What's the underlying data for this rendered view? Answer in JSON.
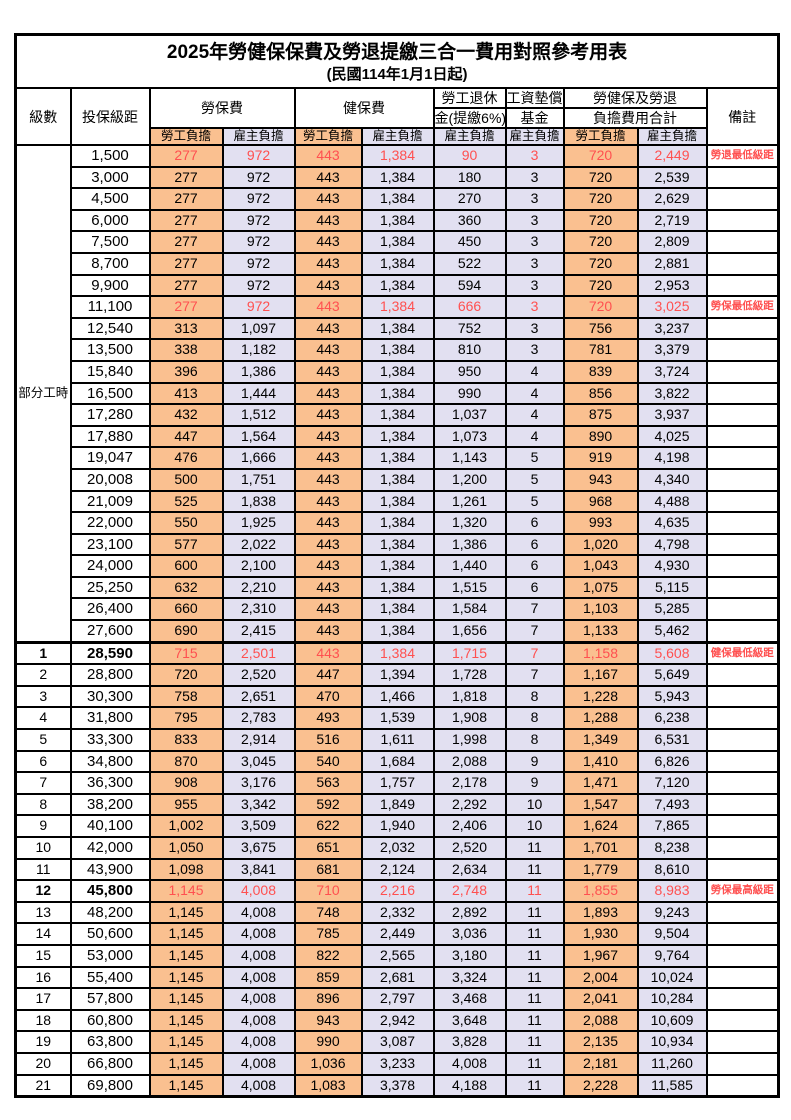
{
  "title": "2025年勞健保保費及勞退提繳三合一費用對照參考用表",
  "subtitle": "(民國114年1月1日起)",
  "part_time_label": "部分工時",
  "header": {
    "level": "級數",
    "bracket": "投保級距",
    "labor_ins": "勞保費",
    "health_ins": "健保費",
    "pension_l1": "勞工退休",
    "pension_l2": "金(提繳6%)",
    "wage_fund_l1": "工資墊償",
    "wage_fund_l2": "基金",
    "total_l1": "勞健保及勞退",
    "total_l2": "負擔費用合計",
    "remark": "備註",
    "employee": "勞工負擔",
    "employer": "雇主負擔"
  },
  "colors": {
    "employee_bg": "#FAC090",
    "employer_bg": "#E2E0F1",
    "highlight_text": "#FF5050",
    "border": "#000000"
  },
  "chart_data": {
    "type": "table",
    "columns": [
      "級數",
      "投保級距",
      "勞保費-勞工負擔",
      "勞保費-雇主負擔",
      "健保費-勞工負擔",
      "健保費-雇主負擔",
      "勞工退休金(提繳6%)-雇主負擔",
      "工資墊償基金-雇主負擔",
      "合計-勞工負擔",
      "合計-雇主負擔",
      "備註"
    ],
    "rows": [
      {
        "level": "",
        "bracket": "1,500",
        "values": [
          "277",
          "972",
          "443",
          "1,384",
          "90",
          "3",
          "720",
          "2,449"
        ],
        "remark": "勞退最低級距",
        "highlight": true,
        "bold": false
      },
      {
        "level": "",
        "bracket": "3,000",
        "values": [
          "277",
          "972",
          "443",
          "1,384",
          "180",
          "3",
          "720",
          "2,539"
        ],
        "remark": "",
        "highlight": false,
        "bold": false
      },
      {
        "level": "",
        "bracket": "4,500",
        "values": [
          "277",
          "972",
          "443",
          "1,384",
          "270",
          "3",
          "720",
          "2,629"
        ],
        "remark": "",
        "highlight": false,
        "bold": false
      },
      {
        "level": "",
        "bracket": "6,000",
        "values": [
          "277",
          "972",
          "443",
          "1,384",
          "360",
          "3",
          "720",
          "2,719"
        ],
        "remark": "",
        "highlight": false,
        "bold": false
      },
      {
        "level": "",
        "bracket": "7,500",
        "values": [
          "277",
          "972",
          "443",
          "1,384",
          "450",
          "3",
          "720",
          "2,809"
        ],
        "remark": "",
        "highlight": false,
        "bold": false
      },
      {
        "level": "",
        "bracket": "8,700",
        "values": [
          "277",
          "972",
          "443",
          "1,384",
          "522",
          "3",
          "720",
          "2,881"
        ],
        "remark": "",
        "highlight": false,
        "bold": false
      },
      {
        "level": "",
        "bracket": "9,900",
        "values": [
          "277",
          "972",
          "443",
          "1,384",
          "594",
          "3",
          "720",
          "2,953"
        ],
        "remark": "",
        "highlight": false,
        "bold": false
      },
      {
        "level": "",
        "bracket": "11,100",
        "values": [
          "277",
          "972",
          "443",
          "1,384",
          "666",
          "3",
          "720",
          "3,025"
        ],
        "remark": "勞保最低級距",
        "highlight": true,
        "bold": false
      },
      {
        "level": "",
        "bracket": "12,540",
        "values": [
          "313",
          "1,097",
          "443",
          "1,384",
          "752",
          "3",
          "756",
          "3,237"
        ],
        "remark": "",
        "highlight": false,
        "bold": false
      },
      {
        "level": "",
        "bracket": "13,500",
        "values": [
          "338",
          "1,182",
          "443",
          "1,384",
          "810",
          "3",
          "781",
          "3,379"
        ],
        "remark": "",
        "highlight": false,
        "bold": false
      },
      {
        "level": "",
        "bracket": "15,840",
        "values": [
          "396",
          "1,386",
          "443",
          "1,384",
          "950",
          "4",
          "839",
          "3,724"
        ],
        "remark": "",
        "highlight": false,
        "bold": false
      },
      {
        "level": "",
        "bracket": "16,500",
        "values": [
          "413",
          "1,444",
          "443",
          "1,384",
          "990",
          "4",
          "856",
          "3,822"
        ],
        "remark": "",
        "highlight": false,
        "bold": false
      },
      {
        "level": "",
        "bracket": "17,280",
        "values": [
          "432",
          "1,512",
          "443",
          "1,384",
          "1,037",
          "4",
          "875",
          "3,937"
        ],
        "remark": "",
        "highlight": false,
        "bold": false
      },
      {
        "level": "",
        "bracket": "17,880",
        "values": [
          "447",
          "1,564",
          "443",
          "1,384",
          "1,073",
          "4",
          "890",
          "4,025"
        ],
        "remark": "",
        "highlight": false,
        "bold": false
      },
      {
        "level": "",
        "bracket": "19,047",
        "values": [
          "476",
          "1,666",
          "443",
          "1,384",
          "1,143",
          "5",
          "919",
          "4,198"
        ],
        "remark": "",
        "highlight": false,
        "bold": false
      },
      {
        "level": "",
        "bracket": "20,008",
        "values": [
          "500",
          "1,751",
          "443",
          "1,384",
          "1,200",
          "5",
          "943",
          "4,340"
        ],
        "remark": "",
        "highlight": false,
        "bold": false
      },
      {
        "level": "",
        "bracket": "21,009",
        "values": [
          "525",
          "1,838",
          "443",
          "1,384",
          "1,261",
          "5",
          "968",
          "4,488"
        ],
        "remark": "",
        "highlight": false,
        "bold": false
      },
      {
        "level": "",
        "bracket": "22,000",
        "values": [
          "550",
          "1,925",
          "443",
          "1,384",
          "1,320",
          "6",
          "993",
          "4,635"
        ],
        "remark": "",
        "highlight": false,
        "bold": false
      },
      {
        "level": "",
        "bracket": "23,100",
        "values": [
          "577",
          "2,022",
          "443",
          "1,384",
          "1,386",
          "6",
          "1,020",
          "4,798"
        ],
        "remark": "",
        "highlight": false,
        "bold": false
      },
      {
        "level": "",
        "bracket": "24,000",
        "values": [
          "600",
          "2,100",
          "443",
          "1,384",
          "1,440",
          "6",
          "1,043",
          "4,930"
        ],
        "remark": "",
        "highlight": false,
        "bold": false
      },
      {
        "level": "",
        "bracket": "25,250",
        "values": [
          "632",
          "2,210",
          "443",
          "1,384",
          "1,515",
          "6",
          "1,075",
          "5,115"
        ],
        "remark": "",
        "highlight": false,
        "bold": false
      },
      {
        "level": "",
        "bracket": "26,400",
        "values": [
          "660",
          "2,310",
          "443",
          "1,384",
          "1,584",
          "7",
          "1,103",
          "5,285"
        ],
        "remark": "",
        "highlight": false,
        "bold": false
      },
      {
        "level": "",
        "bracket": "27,600",
        "values": [
          "690",
          "2,415",
          "443",
          "1,384",
          "1,656",
          "7",
          "1,133",
          "5,462"
        ],
        "remark": "",
        "highlight": false,
        "bold": false
      },
      {
        "level": "1",
        "bracket": "28,590",
        "values": [
          "715",
          "2,501",
          "443",
          "1,384",
          "1,715",
          "7",
          "1,158",
          "5,608"
        ],
        "remark": "健保最低級距",
        "highlight": true,
        "bold": true
      },
      {
        "level": "2",
        "bracket": "28,800",
        "values": [
          "720",
          "2,520",
          "447",
          "1,394",
          "1,728",
          "7",
          "1,167",
          "5,649"
        ],
        "remark": "",
        "highlight": false,
        "bold": false
      },
      {
        "level": "3",
        "bracket": "30,300",
        "values": [
          "758",
          "2,651",
          "470",
          "1,466",
          "1,818",
          "8",
          "1,228",
          "5,943"
        ],
        "remark": "",
        "highlight": false,
        "bold": false
      },
      {
        "level": "4",
        "bracket": "31,800",
        "values": [
          "795",
          "2,783",
          "493",
          "1,539",
          "1,908",
          "8",
          "1,288",
          "6,238"
        ],
        "remark": "",
        "highlight": false,
        "bold": false
      },
      {
        "level": "5",
        "bracket": "33,300",
        "values": [
          "833",
          "2,914",
          "516",
          "1,611",
          "1,998",
          "8",
          "1,349",
          "6,531"
        ],
        "remark": "",
        "highlight": false,
        "bold": false
      },
      {
        "level": "6",
        "bracket": "34,800",
        "values": [
          "870",
          "3,045",
          "540",
          "1,684",
          "2,088",
          "9",
          "1,410",
          "6,826"
        ],
        "remark": "",
        "highlight": false,
        "bold": false
      },
      {
        "level": "7",
        "bracket": "36,300",
        "values": [
          "908",
          "3,176",
          "563",
          "1,757",
          "2,178",
          "9",
          "1,471",
          "7,120"
        ],
        "remark": "",
        "highlight": false,
        "bold": false
      },
      {
        "level": "8",
        "bracket": "38,200",
        "values": [
          "955",
          "3,342",
          "592",
          "1,849",
          "2,292",
          "10",
          "1,547",
          "7,493"
        ],
        "remark": "",
        "highlight": false,
        "bold": false
      },
      {
        "level": "9",
        "bracket": "40,100",
        "values": [
          "1,002",
          "3,509",
          "622",
          "1,940",
          "2,406",
          "10",
          "1,624",
          "7,865"
        ],
        "remark": "",
        "highlight": false,
        "bold": false
      },
      {
        "level": "10",
        "bracket": "42,000",
        "values": [
          "1,050",
          "3,675",
          "651",
          "2,032",
          "2,520",
          "11",
          "1,701",
          "8,238"
        ],
        "remark": "",
        "highlight": false,
        "bold": false
      },
      {
        "level": "11",
        "bracket": "43,900",
        "values": [
          "1,098",
          "3,841",
          "681",
          "2,124",
          "2,634",
          "11",
          "1,779",
          "8,610"
        ],
        "remark": "",
        "highlight": false,
        "bold": false
      },
      {
        "level": "12",
        "bracket": "45,800",
        "values": [
          "1,145",
          "4,008",
          "710",
          "2,216",
          "2,748",
          "11",
          "1,855",
          "8,983"
        ],
        "remark": "勞保最高級距",
        "highlight": true,
        "bold": true
      },
      {
        "level": "13",
        "bracket": "48,200",
        "values": [
          "1,145",
          "4,008",
          "748",
          "2,332",
          "2,892",
          "11",
          "1,893",
          "9,243"
        ],
        "remark": "",
        "highlight": false,
        "bold": false
      },
      {
        "level": "14",
        "bracket": "50,600",
        "values": [
          "1,145",
          "4,008",
          "785",
          "2,449",
          "3,036",
          "11",
          "1,930",
          "9,504"
        ],
        "remark": "",
        "highlight": false,
        "bold": false
      },
      {
        "level": "15",
        "bracket": "53,000",
        "values": [
          "1,145",
          "4,008",
          "822",
          "2,565",
          "3,180",
          "11",
          "1,967",
          "9,764"
        ],
        "remark": "",
        "highlight": false,
        "bold": false
      },
      {
        "level": "16",
        "bracket": "55,400",
        "values": [
          "1,145",
          "4,008",
          "859",
          "2,681",
          "3,324",
          "11",
          "2,004",
          "10,024"
        ],
        "remark": "",
        "highlight": false,
        "bold": false
      },
      {
        "level": "17",
        "bracket": "57,800",
        "values": [
          "1,145",
          "4,008",
          "896",
          "2,797",
          "3,468",
          "11",
          "2,041",
          "10,284"
        ],
        "remark": "",
        "highlight": false,
        "bold": false
      },
      {
        "level": "18",
        "bracket": "60,800",
        "values": [
          "1,145",
          "4,008",
          "943",
          "2,942",
          "3,648",
          "11",
          "2,088",
          "10,609"
        ],
        "remark": "",
        "highlight": false,
        "bold": false
      },
      {
        "level": "19",
        "bracket": "63,800",
        "values": [
          "1,145",
          "4,008",
          "990",
          "3,087",
          "3,828",
          "11",
          "2,135",
          "10,934"
        ],
        "remark": "",
        "highlight": false,
        "bold": false
      },
      {
        "level": "20",
        "bracket": "66,800",
        "values": [
          "1,145",
          "4,008",
          "1,036",
          "3,233",
          "4,008",
          "11",
          "2,181",
          "11,260"
        ],
        "remark": "",
        "highlight": false,
        "bold": false
      },
      {
        "level": "21",
        "bracket": "69,800",
        "values": [
          "1,145",
          "4,008",
          "1,083",
          "3,378",
          "4,188",
          "11",
          "2,228",
          "11,585"
        ],
        "remark": "",
        "highlight": false,
        "bold": false
      }
    ]
  }
}
